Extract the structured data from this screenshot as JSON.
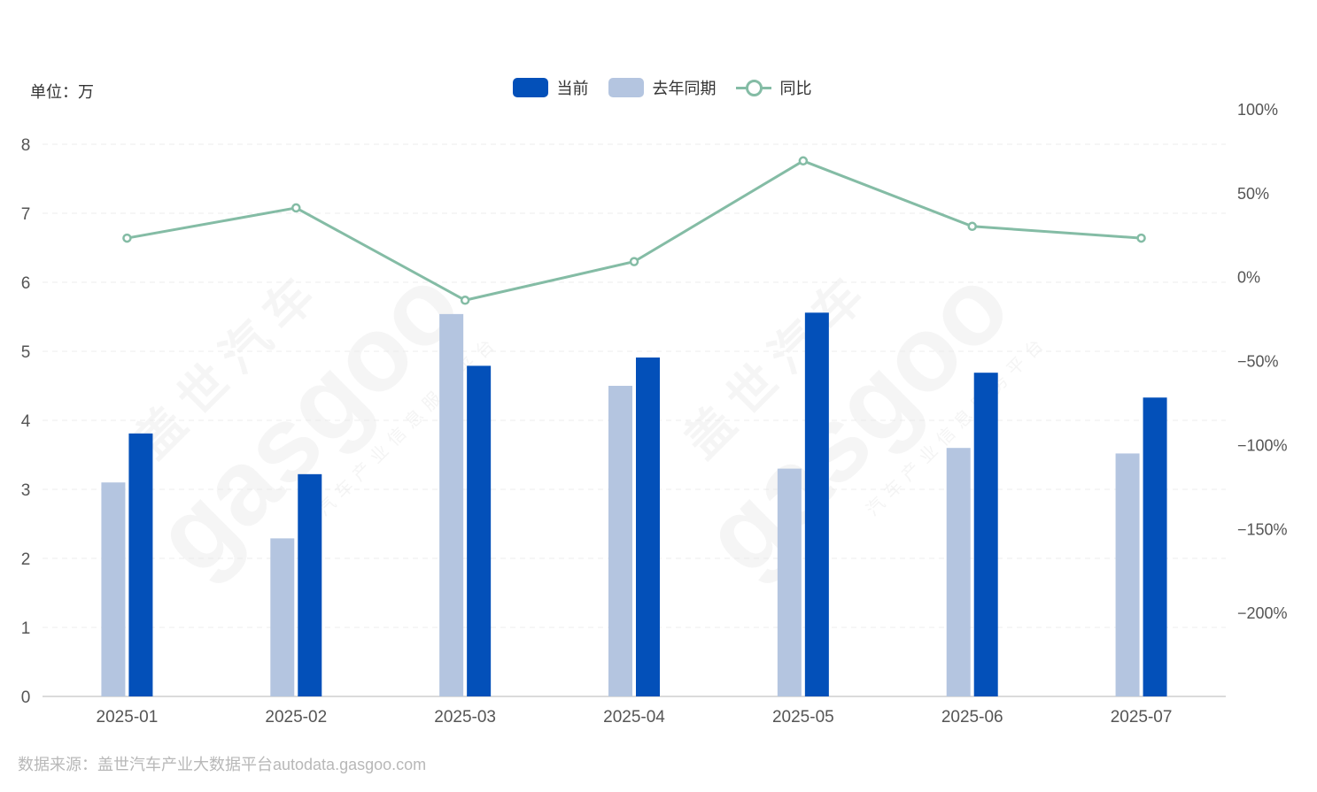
{
  "unit_label": "单位：万",
  "source_label": "数据来源：盖世汽车产业大数据平台autodata.gasgoo.com",
  "watermark": {
    "brand": "gasgoo",
    "cn_name": "盖世汽车",
    "tagline": "汽车产业信息服务平台"
  },
  "colors": {
    "current": "#0350b9",
    "last_year": "#b4c5e0",
    "yoy": "#84bca5",
    "axis_text": "#555555"
  },
  "legend": {
    "current": "当前",
    "last_year": "去年同期",
    "yoy": "同比"
  },
  "chart_data": {
    "type": "bar",
    "categories": [
      "2025-01",
      "2025-02",
      "2025-03",
      "2025-04",
      "2025-05",
      "2025-06",
      "2025-07"
    ],
    "series": [
      {
        "name": "去年同期",
        "type": "bar",
        "axis": "left",
        "values": [
          3.1,
          2.29,
          5.54,
          4.5,
          3.3,
          3.6,
          3.52
        ]
      },
      {
        "name": "当前",
        "type": "bar",
        "axis": "left",
        "values": [
          3.81,
          3.22,
          4.79,
          4.91,
          5.56,
          4.69,
          4.33
        ]
      },
      {
        "name": "同比",
        "type": "line",
        "axis": "right",
        "values": [
          23,
          41,
          -14,
          9,
          69,
          30,
          23
        ]
      }
    ],
    "y_left": {
      "ylim": [
        0,
        8
      ],
      "ticks": [
        "0",
        "1",
        "2",
        "3",
        "4",
        "5",
        "6",
        "7",
        "8"
      ]
    },
    "y_right": {
      "ylim": [
        -250,
        100
      ],
      "ticks": [
        "100%",
        "50%",
        "0%",
        "−50%",
        "−100%",
        "−150%",
        "−200%"
      ],
      "tick_values": [
        100,
        50,
        0,
        -50,
        -100,
        -150,
        -200
      ]
    },
    "grid": true,
    "legend_position": "top-center"
  }
}
